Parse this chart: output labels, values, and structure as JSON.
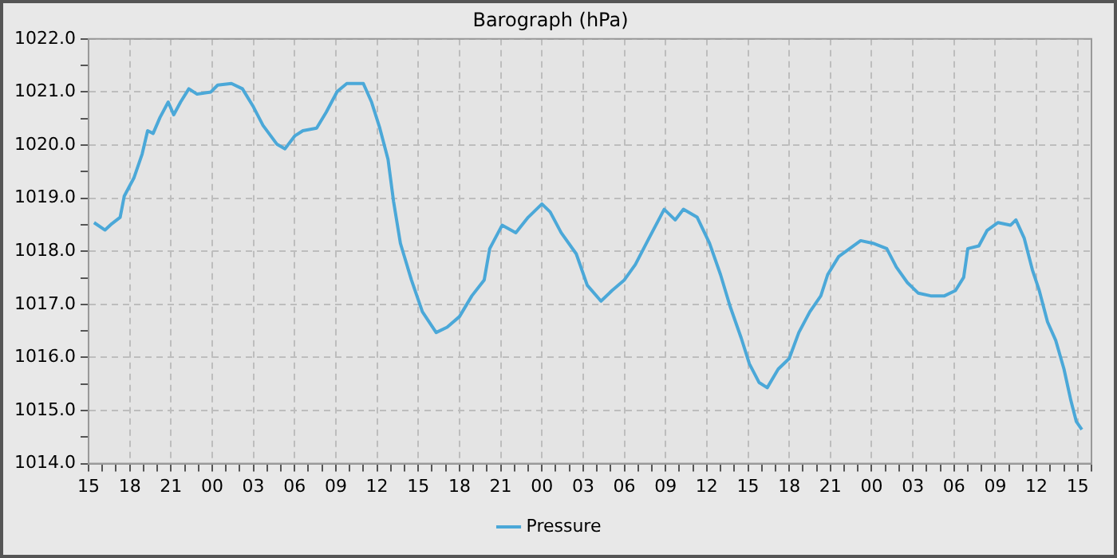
{
  "chart_data": {
    "type": "line",
    "title": "Barograph (hPa)",
    "legend": "bottom",
    "grid": true,
    "marker": "none",
    "line_style": "solid",
    "xlim": [
      15,
      88
    ],
    "ylim": [
      1014,
      1022
    ],
    "xticks": [
      15,
      {
        "value": 16,
        "label": null
      },
      {
        "value": 17,
        "label": null
      },
      18,
      {
        "value": 19,
        "label": null
      },
      {
        "value": 20,
        "label": null
      },
      21,
      {
        "value": 22,
        "label": null
      },
      {
        "value": 23,
        "label": null
      },
      {
        "value": 24,
        "label": "00"
      },
      {
        "value": 25,
        "label": null
      },
      {
        "value": 26,
        "label": null
      },
      {
        "value": 27,
        "label": "03"
      },
      {
        "value": 28,
        "label": null
      },
      {
        "value": 29,
        "label": null
      },
      {
        "value": 30,
        "label": "06"
      },
      {
        "value": 31,
        "label": null
      },
      {
        "value": 32,
        "label": null
      },
      {
        "value": 33,
        "label": "09"
      },
      {
        "value": 34,
        "label": null
      },
      {
        "value": 35,
        "label": null
      },
      {
        "value": 36,
        "label": "12"
      },
      {
        "value": 37,
        "label": null
      },
      {
        "value": 38,
        "label": null
      },
      {
        "value": 39,
        "label": "15"
      },
      {
        "value": 40,
        "label": null
      },
      {
        "value": 41,
        "label": null
      },
      {
        "value": 42,
        "label": "18"
      },
      {
        "value": 43,
        "label": null
      },
      {
        "value": 44,
        "label": null
      },
      {
        "value": 45,
        "label": "21"
      },
      {
        "value": 46,
        "label": null
      },
      {
        "value": 47,
        "label": null
      },
      {
        "value": 48,
        "label": "00"
      },
      {
        "value": 49,
        "label": null
      },
      {
        "value": 50,
        "label": null
      },
      {
        "value": 51,
        "label": "03"
      },
      {
        "value": 52,
        "label": null
      },
      {
        "value": 53,
        "label": null
      },
      {
        "value": 54,
        "label": "06"
      },
      {
        "value": 55,
        "label": null
      },
      {
        "value": 56,
        "label": null
      },
      {
        "value": 57,
        "label": "09"
      },
      {
        "value": 58,
        "label": null
      },
      {
        "value": 59,
        "label": null
      },
      {
        "value": 60,
        "label": "12"
      },
      {
        "value": 61,
        "label": null
      },
      {
        "value": 62,
        "label": null
      },
      {
        "value": 63,
        "label": "15"
      },
      {
        "value": 64,
        "label": null
      },
      {
        "value": 65,
        "label": null
      },
      {
        "value": 66,
        "label": "18"
      },
      {
        "value": 67,
        "label": null
      },
      {
        "value": 68,
        "label": null
      },
      {
        "value": 69,
        "label": "21"
      },
      {
        "value": 70,
        "label": null
      },
      {
        "value": 71,
        "label": null
      },
      {
        "value": 72,
        "label": "00"
      },
      {
        "value": 73,
        "label": null
      },
      {
        "value": 74,
        "label": null
      },
      {
        "value": 75,
        "label": "03"
      },
      {
        "value": 76,
        "label": null
      },
      {
        "value": 77,
        "label": null
      },
      {
        "value": 78,
        "label": "06"
      },
      {
        "value": 79,
        "label": null
      },
      {
        "value": 80,
        "label": null
      },
      {
        "value": 81,
        "label": "09"
      },
      {
        "value": 82,
        "label": null
      },
      {
        "value": 83,
        "label": null
      },
      {
        "value": 84,
        "label": "12"
      },
      {
        "value": 85,
        "label": null
      },
      {
        "value": 86,
        "label": null
      },
      {
        "value": 87,
        "label": "15"
      },
      {
        "value": 88,
        "label": null
      }
    ],
    "yticks": [
      {
        "value": 1014,
        "label": "1014.0"
      },
      {
        "value": 1014.5,
        "label": null
      },
      {
        "value": 1015,
        "label": "1015.0"
      },
      {
        "value": 1015.5,
        "label": null
      },
      {
        "value": 1016,
        "label": "1016.0"
      },
      {
        "value": 1016.5,
        "label": null
      },
      {
        "value": 1017,
        "label": "1017.0"
      },
      {
        "value": 1017.5,
        "label": null
      },
      {
        "value": 1018,
        "label": "1018.0"
      },
      {
        "value": 1018.5,
        "label": null
      },
      {
        "value": 1019,
        "label": "1019.0"
      },
      {
        "value": 1019.5,
        "label": null
      },
      {
        "value": 1020,
        "label": "1020.0"
      },
      {
        "value": 1020.5,
        "label": null
      },
      {
        "value": 1021,
        "label": "1021.0"
      },
      {
        "value": 1021.5,
        "label": null
      },
      {
        "value": 1022,
        "label": "1022.0"
      }
    ],
    "series": [
      {
        "name": "Pressure",
        "color": "#4ba8d8",
        "x": [
          15.4,
          16.2,
          16.7,
          17.3,
          17.6,
          18.3,
          18.9,
          19.3,
          19.7,
          20.2,
          20.8,
          21.2,
          21.7,
          22.3,
          22.9,
          23.9,
          24.4,
          25.4,
          26.2,
          27.0,
          27.7,
          28.7,
          29.3,
          30.0,
          30.6,
          31.6,
          32.3,
          33.1,
          33.8,
          35.0,
          35.6,
          36.2,
          36.8,
          37.2,
          37.7,
          38.5,
          39.3,
          40.3,
          41.1,
          42.0,
          42.9,
          43.8,
          44.2,
          45.1,
          46.1,
          47.0,
          48.0,
          48.6,
          49.4,
          50.5,
          51.3,
          52.3,
          53.1,
          54.0,
          54.8,
          55.8,
          56.9,
          57.7,
          58.3,
          59.3,
          60.2,
          61.0,
          61.7,
          62.5,
          63.1,
          63.8,
          64.4,
          65.2,
          66.0,
          66.7,
          67.5,
          68.3,
          68.8,
          69.6,
          70.4,
          71.2,
          72.1,
          73.1,
          73.8,
          74.6,
          75.4,
          76.3,
          77.3,
          78.1,
          78.7,
          79.0,
          79.8,
          80.4,
          81.2,
          82.1,
          82.5,
          83.1,
          83.7,
          84.2,
          84.8,
          85.4,
          86.0,
          86.5,
          86.9,
          87.3
        ],
        "values": [
          1018.54,
          1018.4,
          1018.52,
          1018.64,
          1019.04,
          1019.38,
          1019.83,
          1020.27,
          1020.22,
          1020.52,
          1020.81,
          1020.57,
          1020.81,
          1021.06,
          1020.96,
          1021.0,
          1021.13,
          1021.16,
          1021.06,
          1020.72,
          1020.37,
          1020.02,
          1019.93,
          1020.17,
          1020.27,
          1020.32,
          1020.62,
          1021.01,
          1021.16,
          1021.16,
          1020.81,
          1020.32,
          1019.73,
          1018.94,
          1018.15,
          1017.46,
          1016.86,
          1016.47,
          1016.57,
          1016.77,
          1017.16,
          1017.46,
          1018.05,
          1018.49,
          1018.35,
          1018.64,
          1018.89,
          1018.74,
          1018.35,
          1017.95,
          1017.36,
          1017.06,
          1017.26,
          1017.46,
          1017.75,
          1018.25,
          1018.79,
          1018.59,
          1018.79,
          1018.64,
          1018.15,
          1017.56,
          1016.96,
          1016.37,
          1015.88,
          1015.53,
          1015.43,
          1015.78,
          1015.98,
          1016.47,
          1016.86,
          1017.16,
          1017.56,
          1017.9,
          1018.05,
          1018.2,
          1018.15,
          1018.05,
          1017.7,
          1017.41,
          1017.21,
          1017.16,
          1017.16,
          1017.26,
          1017.51,
          1018.05,
          1018.1,
          1018.39,
          1018.54,
          1018.49,
          1018.59,
          1018.25,
          1017.65,
          1017.26,
          1016.67,
          1016.32,
          1015.78,
          1015.19,
          1014.79,
          1014.64
        ]
      }
    ]
  }
}
